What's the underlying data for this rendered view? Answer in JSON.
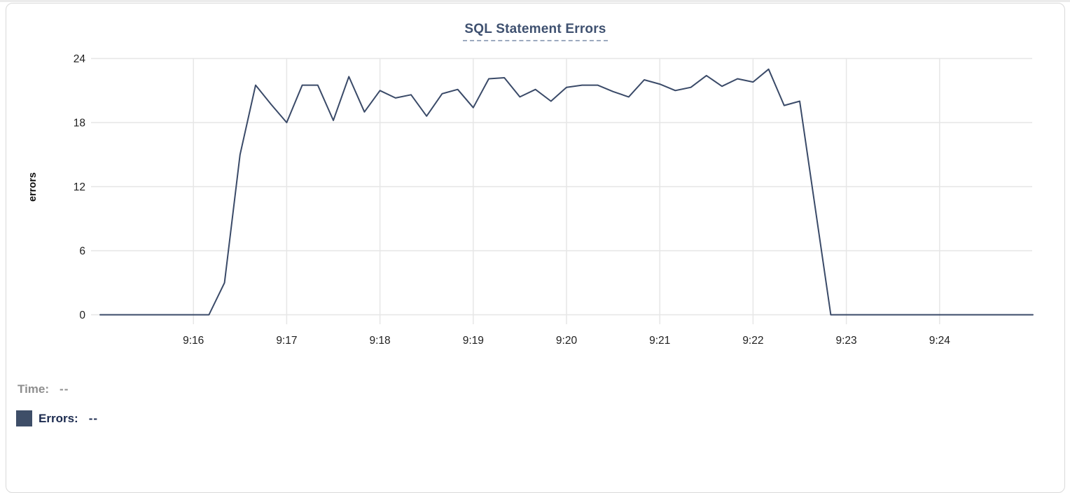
{
  "chart_data": {
    "type": "line",
    "title": "SQL Statement Errors",
    "xlabel": "",
    "ylabel": "errors",
    "ylim": [
      0,
      24
    ],
    "yticks": [
      0,
      6,
      12,
      18,
      24
    ],
    "grid": true,
    "legend_position": "bottom-left",
    "x_range_seconds": [
      0,
      600
    ],
    "x_start_time": "9:15",
    "x_end_time": "9:25",
    "x_tick_seconds": [
      60,
      120,
      180,
      240,
      300,
      360,
      420,
      480,
      540
    ],
    "x_tick_labels": [
      "9:16",
      "9:17",
      "9:18",
      "9:19",
      "9:20",
      "9:21",
      "9:22",
      "9:23",
      "9:24"
    ],
    "point_interval_seconds": 10,
    "series": [
      {
        "name": "Errors",
        "color": "#3a4a68",
        "values": [
          0,
          0,
          0,
          0,
          0,
          0,
          0,
          0,
          3,
          15,
          21.5,
          19.7,
          18,
          21.5,
          21.5,
          18.2,
          22.3,
          19,
          21,
          20.3,
          20.6,
          18.6,
          20.7,
          21.1,
          19.4,
          22.1,
          22.2,
          20.4,
          21.1,
          20,
          21.3,
          21.5,
          21.5,
          20.9,
          20.4,
          22,
          21.6,
          21,
          21.3,
          22.4,
          21.4,
          22.1,
          21.8,
          23,
          19.6,
          20,
          10,
          0,
          0,
          0,
          0,
          0,
          0,
          0,
          0,
          0,
          0,
          0,
          0,
          0,
          0
        ]
      }
    ]
  },
  "tooltip_readout": {
    "time_label": "Time:",
    "time_value": "--",
    "errors_label": "Errors:",
    "errors_value": "--"
  },
  "colors": {
    "line": "#3a4a68",
    "title_text": "#3f5170",
    "title_underline": "#9daabf",
    "grid": "#e6e6e6",
    "tick_text": "#202020",
    "axis_label_text": "#111111",
    "time_text": "#8e8e8e",
    "errors_text": "#1c2b4f",
    "swatch": "#3e4e68",
    "card_border": "#d9d9d9"
  }
}
